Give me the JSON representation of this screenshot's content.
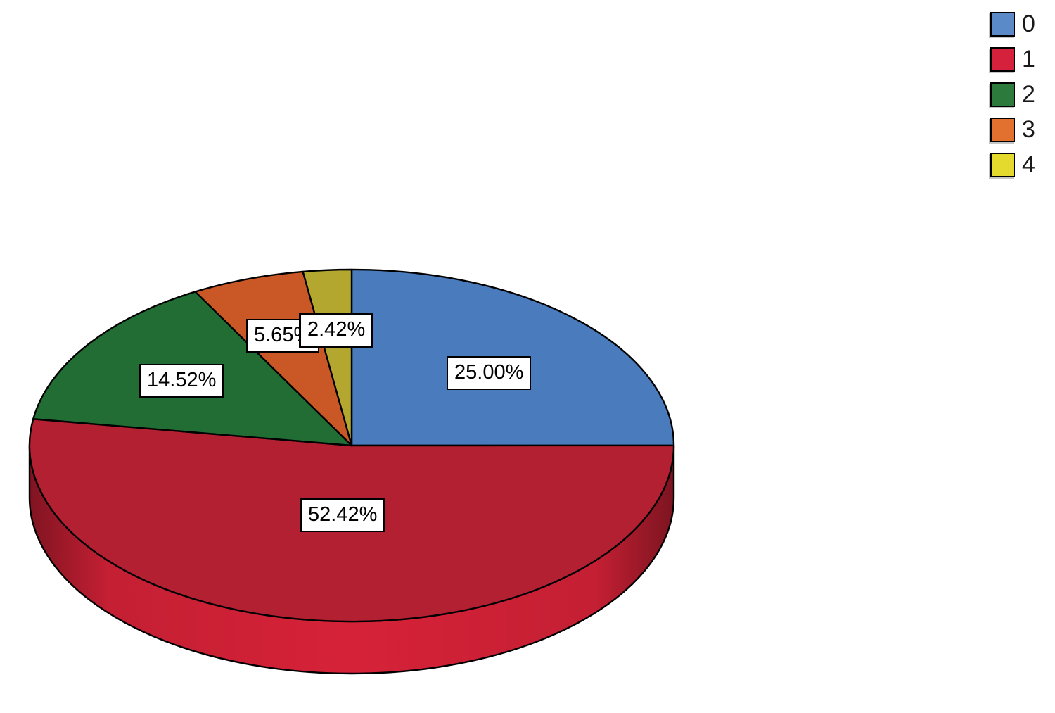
{
  "chart_data": {
    "type": "pie",
    "style": "3d",
    "title": "",
    "legend_position": "top-right",
    "direction": "clockwise",
    "start_angle_deg": 0,
    "categories": [
      "0",
      "1",
      "2",
      "3",
      "4"
    ],
    "values": [
      25.0,
      52.42,
      14.52,
      5.65,
      2.42
    ],
    "slices": [
      {
        "category": "0",
        "value": 25.0,
        "label": "25.00%",
        "color": "#4A7BBD",
        "side_color": "#4A7BBD",
        "legend_color": "#5B8AC9"
      },
      {
        "category": "1",
        "value": 52.42,
        "label": "52.42%",
        "color": "#B32031",
        "side_color": "#CE2136",
        "legend_color": "#D5213B"
      },
      {
        "category": "2",
        "value": 14.52,
        "label": "14.52%",
        "color": "#216D34",
        "side_color": "#216D34",
        "legend_color": "#2C7A3C"
      },
      {
        "category": "3",
        "value": 5.65,
        "label": "5.65%",
        "color": "#C95826",
        "side_color": "#C95826",
        "legend_color": "#E2702E"
      },
      {
        "category": "4",
        "value": 2.42,
        "label": "2.42%",
        "color": "#B3A72F",
        "side_color": "#B3A72F",
        "legend_color": "#E3DA2D"
      }
    ]
  }
}
